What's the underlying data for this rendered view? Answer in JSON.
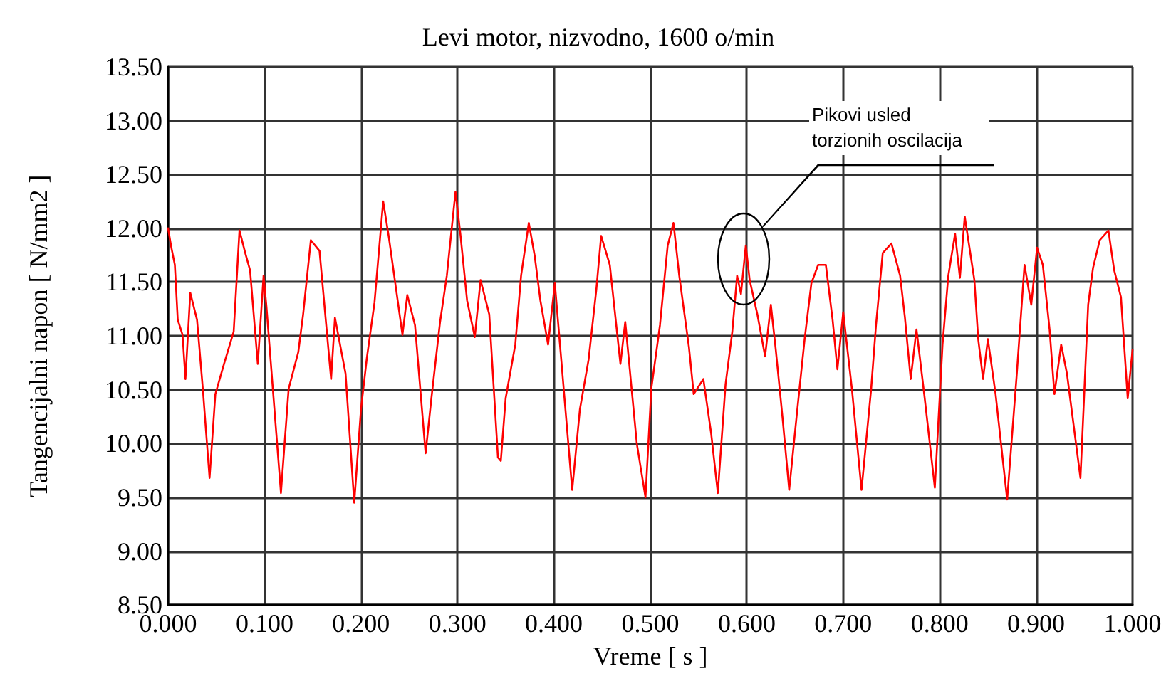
{
  "chart_data": {
    "type": "line",
    "title": "Levi motor, nizvodno, 1600 o/min",
    "xlabel": "Vreme [ s ]",
    "ylabel": "Tangencijalni napon [ N/mm2 ]",
    "annotations": [
      "Pikovi usled\ntorzionih oscilacija"
    ],
    "series": [
      {
        "color": "#ff0000",
        "x": [
          0,
          0.0034,
          0.007,
          0.01,
          0.015,
          0.018,
          0.023,
          0.03,
          0.036,
          0.043,
          0.049,
          0.058,
          0.068,
          0.074,
          0.08,
          0.085,
          0.093,
          0.099,
          0.102,
          0.117,
          0.125,
          0.135,
          0.14,
          0.148,
          0.157,
          0.169,
          0.173,
          0.184,
          0.193,
          0.2,
          0.206,
          0.214,
          0.223,
          0.229,
          0.243,
          0.248,
          0.256,
          0.267,
          0.273,
          0.282,
          0.289,
          0.298,
          0.303,
          0.31,
          0.318,
          0.324,
          0.333,
          0.342,
          0.345,
          0.35,
          0.36,
          0.366,
          0.374,
          0.38,
          0.386,
          0.394,
          0.401,
          0.405,
          0.419,
          0.427,
          0.436,
          0.444,
          0.449,
          0.458,
          0.469,
          0.474,
          0.486,
          0.495,
          0.501,
          0.51,
          0.518,
          0.524,
          0.53,
          0.54,
          0.545,
          0.555,
          0.563,
          0.57,
          0.578,
          0.585,
          0.59,
          0.594,
          0.599,
          0.603,
          0.611,
          0.619,
          0.625,
          0.63,
          0.637,
          0.644,
          0.652,
          0.66,
          0.667,
          0.674,
          0.682,
          0.689,
          0.694,
          0.7,
          0.709,
          0.719,
          0.729,
          0.734,
          0.741,
          0.75,
          0.759,
          0.764,
          0.77,
          0.776,
          0.784,
          0.795,
          0.803,
          0.809,
          0.816,
          0.821,
          0.826,
          0.836,
          0.84,
          0.845,
          0.85,
          0.858,
          0.87,
          0.88,
          0.888,
          0.895,
          0.901,
          0.907,
          0.914,
          0.919,
          0.926,
          0.932,
          0.946,
          0.954,
          0.959,
          0.966,
          0.975,
          0.981,
          0.988,
          0.995,
          1.0
        ],
        "values": [
          12.0,
          11.82,
          11.66,
          11.15,
          11.01,
          10.6,
          11.4,
          11.15,
          10.51,
          9.68,
          10.46,
          10.74,
          11.04,
          11.98,
          11.77,
          11.61,
          10.74,
          11.56,
          11.27,
          9.54,
          10.51,
          10.85,
          11.2,
          11.89,
          11.79,
          10.6,
          11.17,
          10.65,
          9.45,
          10.32,
          10.79,
          11.31,
          12.25,
          11.91,
          11.01,
          11.38,
          11.1,
          9.91,
          10.42,
          11.13,
          11.56,
          12.34,
          11.95,
          11.33,
          10.99,
          11.52,
          11.2,
          9.87,
          9.84,
          10.42,
          10.92,
          11.56,
          12.05,
          11.75,
          11.33,
          10.92,
          11.49,
          11.06,
          9.57,
          10.32,
          10.78,
          11.43,
          11.93,
          11.66,
          10.74,
          11.13,
          10.0,
          9.5,
          10.51,
          11.1,
          11.84,
          12.05,
          11.56,
          10.9,
          10.46,
          10.6,
          10.1,
          9.54,
          10.55,
          11.04,
          11.56,
          11.39,
          11.84,
          11.52,
          11.2,
          10.81,
          11.29,
          10.88,
          10.25,
          9.57,
          10.28,
          10.97,
          11.49,
          11.66,
          11.66,
          11.15,
          10.69,
          11.22,
          10.51,
          9.57,
          10.51,
          11.1,
          11.77,
          11.86,
          11.56,
          11.17,
          10.6,
          11.06,
          10.46,
          9.59,
          10.92,
          11.56,
          11.95,
          11.54,
          12.11,
          11.52,
          10.97,
          10.6,
          10.97,
          10.46,
          9.48,
          10.65,
          11.66,
          11.29,
          11.82,
          11.66,
          11.06,
          10.46,
          10.92,
          10.65,
          9.68,
          11.29,
          11.63,
          11.89,
          11.98,
          11.61,
          11.36,
          10.42,
          10.87
        ]
      }
    ],
    "xlim": [
      0,
      1
    ],
    "xticks": [
      {
        "value": 0,
        "label": "0.000"
      },
      {
        "value": 0.1,
        "label": "0.100"
      },
      {
        "value": 0.2,
        "label": "0.200"
      },
      {
        "value": 0.3,
        "label": "0.300"
      },
      {
        "value": 0.4,
        "label": "0.400"
      },
      {
        "value": 0.5,
        "label": "0.500"
      },
      {
        "value": 0.6,
        "label": "0.600"
      },
      {
        "value": 0.7,
        "label": "0.700"
      },
      {
        "value": 0.8,
        "label": "0.800"
      },
      {
        "value": 0.9,
        "label": "0.900"
      },
      {
        "value": 1,
        "label": "1.000"
      }
    ],
    "ylim": [
      8.5,
      13.5
    ],
    "yticks": [
      {
        "value": 8.5,
        "label": "8.50"
      },
      {
        "value": 9,
        "label": "9.00"
      },
      {
        "value": 9.5,
        "label": "9.50"
      },
      {
        "value": 10,
        "label": "10.00"
      },
      {
        "value": 10.5,
        "label": "10.50"
      },
      {
        "value": 11,
        "label": "11.00"
      },
      {
        "value": 11.5,
        "label": "11.50"
      },
      {
        "value": 12,
        "label": "12.00"
      },
      {
        "value": 12.5,
        "label": "12.50"
      },
      {
        "value": 13,
        "label": "13.00"
      },
      {
        "value": 13.5,
        "label": "13.50"
      }
    ],
    "grid": true,
    "marker": "none",
    "line_style": "solid"
  }
}
